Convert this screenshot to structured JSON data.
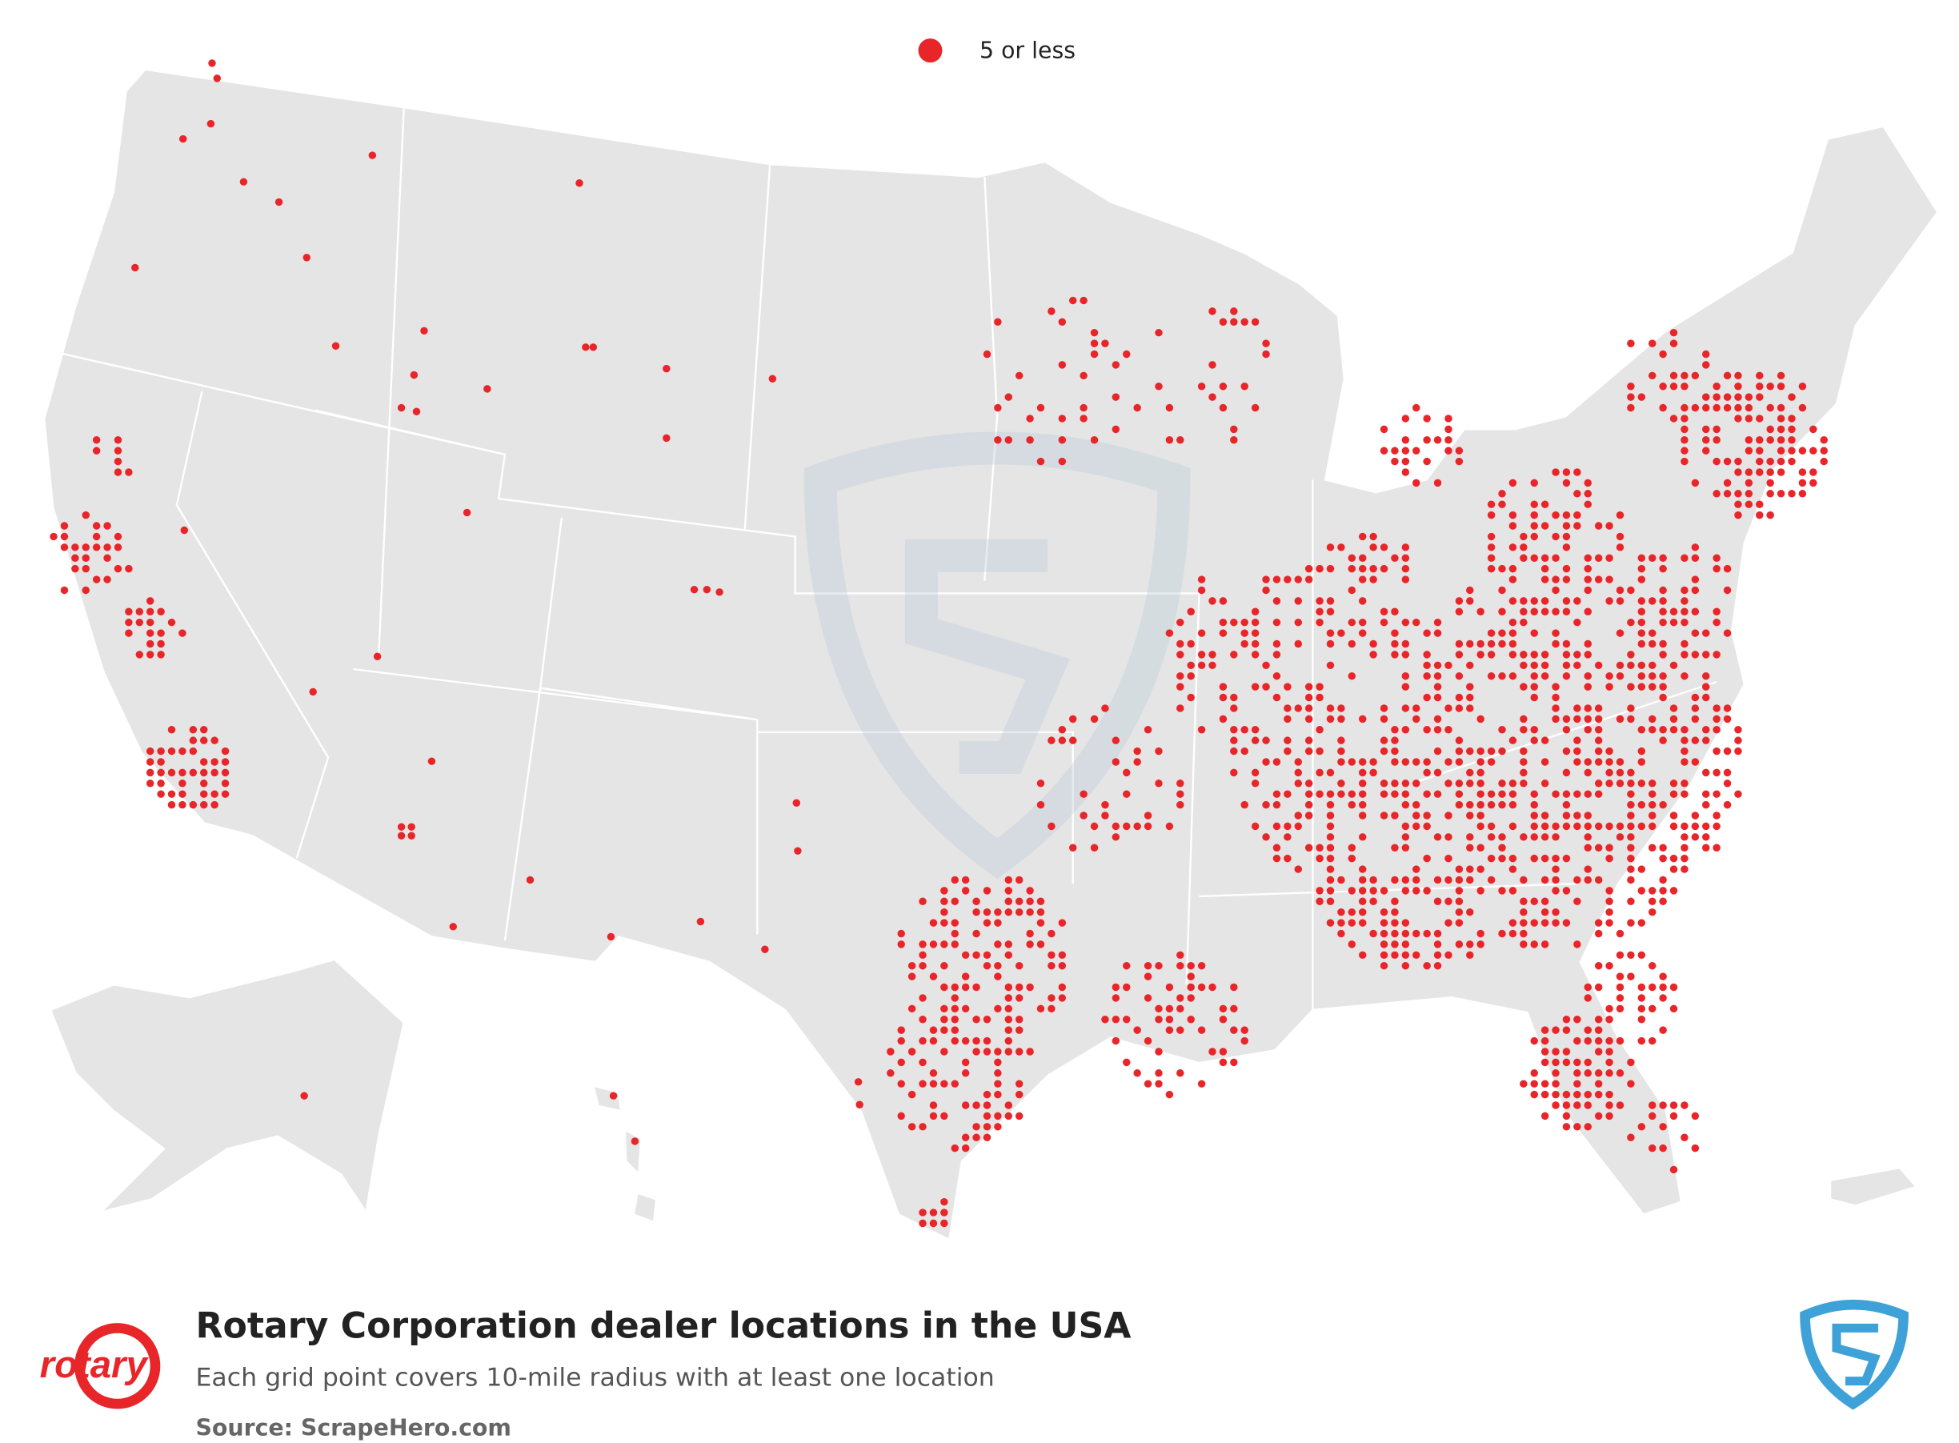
{
  "legend": {
    "label": "5 or less"
  },
  "footer": {
    "title": "Rotary Corporation dealer locations in the USA",
    "subtitle": "Each grid point covers 10-mile radius with at least one location",
    "source": "Source: ScrapeHero.com"
  },
  "logo": {
    "text": "rotary"
  }
}
